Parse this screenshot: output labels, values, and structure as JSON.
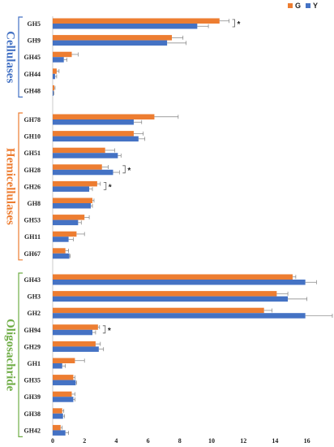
{
  "chart_data": {
    "type": "bar",
    "orientation": "horizontal",
    "title": "",
    "xlabel": "",
    "ylabel": "",
    "xlim": [
      0,
      16.8
    ],
    "xticks": [
      0,
      2,
      4,
      6,
      8,
      10,
      12,
      14,
      16
    ],
    "legend": {
      "placement": "top-right",
      "entries": [
        "G",
        "Y"
      ]
    },
    "colors": {
      "G": "#ED7D31",
      "Y": "#4472C4",
      "cellulases": "#4472C4",
      "hemicellulases": "#ED7D31",
      "oligosachride": "#70AD47"
    },
    "significance_marker": "*",
    "groups": [
      {
        "name": "Cellulases",
        "color_key": "cellulases",
        "categories": [
          "GH5",
          "GH9",
          "GH45",
          "GH44",
          "GH48"
        ],
        "series": [
          {
            "name": "G",
            "values": [
              10.5,
              7.5,
              1.2,
              0.25,
              0.1
            ],
            "errors": [
              0.6,
              0.7,
              0.4,
              0.15,
              0.05
            ]
          },
          {
            "name": "Y",
            "values": [
              9.1,
              7.2,
              0.7,
              0.15,
              0.05
            ],
            "errors": [
              0.7,
              1.2,
              0.2,
              0.1,
              0.03
            ]
          }
        ],
        "significant": [
          true,
          false,
          false,
          false,
          false
        ]
      },
      {
        "name": "Hemicellulases",
        "color_key": "hemicellulases",
        "categories": [
          "GH78",
          "GH10",
          "GH51",
          "GH28",
          "GH26",
          "GH8",
          "GH53",
          "GH11",
          "GH67"
        ],
        "series": [
          {
            "name": "G",
            "values": [
              6.4,
              5.1,
              3.3,
              3.1,
              2.8,
              2.5,
              2.0,
              1.5,
              0.8
            ],
            "errors": [
              1.5,
              0.6,
              0.6,
              0.4,
              0.2,
              0.1,
              0.3,
              0.5,
              0.2
            ]
          },
          {
            "name": "Y",
            "values": [
              5.1,
              5.4,
              4.1,
              3.8,
              2.3,
              2.4,
              1.6,
              1.0,
              1.05
            ],
            "errors": [
              0.5,
              0.4,
              0.2,
              0.4,
              0.2,
              0.1,
              0.2,
              0.3,
              0.05
            ]
          }
        ],
        "significant": [
          false,
          false,
          false,
          true,
          true,
          false,
          false,
          false,
          false
        ]
      },
      {
        "name": "Oligosachride",
        "color_key": "oligosachride",
        "categories": [
          "GH43",
          "GH3",
          "GH2",
          "GH94",
          "GH29",
          "GH1",
          "GH35",
          "GH39",
          "GH38",
          "GH42"
        ],
        "series": [
          {
            "name": "G",
            "values": [
              15.1,
              14.1,
              13.3,
              2.85,
              2.7,
              1.4,
              1.3,
              1.2,
              0.6,
              0.5
            ],
            "errors": [
              0.2,
              0.7,
              0.5,
              0.1,
              0.3,
              0.6,
              0.1,
              0.2,
              0.1,
              0.1
            ]
          },
          {
            "name": "Y",
            "values": [
              15.9,
              14.8,
              15.9,
              2.5,
              2.9,
              0.6,
              1.45,
              1.3,
              0.65,
              0.8
            ],
            "errors": [
              0.7,
              1.2,
              1.7,
              0.2,
              0.3,
              0.2,
              0.05,
              0.1,
              0.1,
              0.2
            ]
          }
        ],
        "significant": [
          false,
          false,
          false,
          true,
          false,
          false,
          false,
          false,
          false,
          false
        ]
      }
    ]
  }
}
